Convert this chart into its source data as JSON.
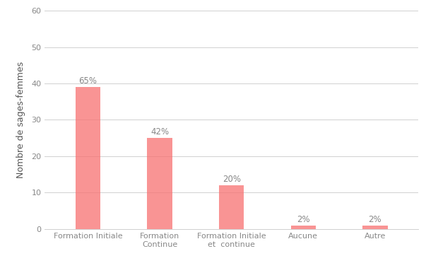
{
  "categories": [
    "Formation Initiale",
    "Formation\nContinue",
    "Formation Initiale\net  continue",
    "Aucune",
    "Autre"
  ],
  "values": [
    39,
    25,
    12,
    1,
    1
  ],
  "percentages": [
    "65%",
    "42%",
    "20%",
    "2%",
    "2%"
  ],
  "bar_color": "#F87171",
  "bar_alpha": 0.75,
  "ylabel": "Nombre de sages-femmes",
  "ylim": [
    0,
    60
  ],
  "yticks": [
    0,
    10,
    20,
    30,
    40,
    50,
    60
  ],
  "background_color": "#ffffff",
  "grid_color": "#d0d0d0",
  "label_fontsize": 8.5,
  "tick_fontsize": 8,
  "ylabel_fontsize": 9,
  "bar_width": 0.35
}
